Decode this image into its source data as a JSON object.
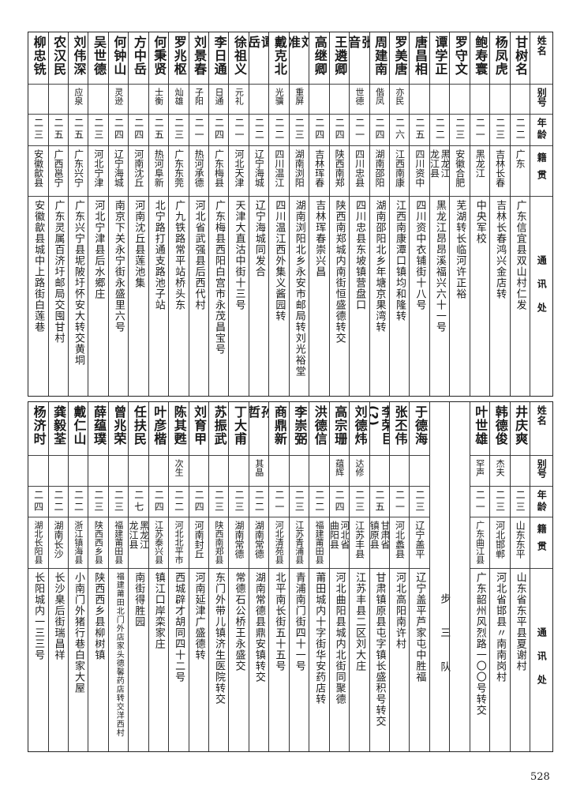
{
  "header": {
    "name": "姓名",
    "alias": "别号",
    "age": "年龄",
    "origin": "籍贯",
    "address": "通讯处"
  },
  "top": {
    "columns": [
      {
        "name": "甘树名",
        "alias": "",
        "age": "二二",
        "origin": [
          "广东"
        ],
        "address": "广东信宜县双山村仁发"
      },
      {
        "name": "杨凤虎",
        "alias": "",
        "age": "二三",
        "origin": [
          "吉林长春"
        ],
        "address": "吉林长春鸿兴金店转"
      },
      {
        "name": "鲍寿寰",
        "alias": "",
        "age": "二一",
        "origin": [
          "黑龙江"
        ],
        "address": "中央军校"
      },
      {
        "name": "罗守文",
        "alias": "",
        "age": "二三",
        "origin": [
          "安徽合肥"
        ],
        "address": "芜湖转长临河许正裕"
      },
      {
        "name": "谭学正",
        "alias": "",
        "age": "二二",
        "origin": [
          "黑龙江",
          "龙江县"
        ],
        "address": "黑龙江昂昂溪福兴六十一号"
      },
      {
        "name": "唐昌相",
        "alias": "",
        "age": "二五",
        "origin": [
          "四川资中"
        ],
        "address": "四川资中衣铺街十八号"
      },
      {
        "name": "罗美唐",
        "alias": "亦民",
        "age": "二六",
        "origin": [
          "江西南康"
        ],
        "address": "江西南康潭口镇均和隆转"
      },
      {
        "name": "周建南",
        "alias": "偕凤",
        "age": "二四",
        "origin": [
          "湖南邵阳"
        ],
        "address": "湖南邵阳北乡年塘京果湾转"
      },
      {
        "name": "张音",
        "alias": "世德",
        "age": "二一",
        "origin": [
          "四川忠县"
        ],
        "address": "四川忠县东坡镇营盘口"
      },
      {
        "name": "王遴卿",
        "alias": "",
        "age": "二四",
        "origin": [
          "陕西南郑"
        ],
        "address": "陕西南郑城内南街恒盛德转交"
      },
      {
        "name": "高继卿",
        "alias": "",
        "age": "二四",
        "origin": [
          "吉林珲春"
        ],
        "address": "吉林珲春崇兴昌"
      },
      {
        "name": "刘准",
        "alias": "重屏",
        "age": "二三",
        "origin": [
          "湖南浏阳"
        ],
        "address": "湖南浏阳北乡永安市邮局转刘光裕堂"
      },
      {
        "name": "戴克北",
        "alias": "光骥",
        "age": "二二",
        "origin": [
          "四川温江"
        ],
        "address": "四川温江西外集义酱园转"
      },
      {
        "name": "谭岳",
        "alias": "",
        "age": "二二",
        "origin": [
          "辽宁海城"
        ],
        "address": "辽宁海城同发合"
      },
      {
        "name": "徐祖义",
        "alias": "元礼",
        "age": "二一",
        "origin": [
          "河北天津"
        ],
        "address": "天津大直沽中街十三号"
      },
      {
        "name": "李日通",
        "alias": "日通",
        "age": "二四",
        "origin": [
          "广东梅县"
        ],
        "address": "广东梅县西阳白宫市永茂昌宝号"
      },
      {
        "name": "刘景春",
        "alias": "子阳",
        "age": "二一",
        "origin": [
          "热河承德"
        ],
        "address": "河北省武强县后西代村"
      },
      {
        "name": "罗兆枢",
        "alias": "灿雄",
        "age": "二三",
        "origin": [
          "广东东莞"
        ],
        "address": "广九铁路常平站桥头东"
      },
      {
        "name": "何秉贤",
        "alias": "士衡",
        "age": "二五",
        "origin": [
          "热河阜新"
        ],
        "address": "北宁路打通支路池子站"
      },
      {
        "name": "方中岳",
        "alias": "",
        "age": "二四",
        "origin": [
          "河南沈丘"
        ],
        "address": "河南沈丘县莲池集"
      },
      {
        "name": "何钟山",
        "alias": "灵逊",
        "age": "二四",
        "origin": [
          "辽宁海城"
        ],
        "address": "南京下关永宁街永盛里六号"
      },
      {
        "name": "吴世德",
        "alias": "",
        "age": "二三",
        "origin": [
          "河北宁津"
        ],
        "address": "河北宁津县后水郷庄"
      },
      {
        "name": "刘伟深",
        "alias": "应泉",
        "age": "二五",
        "origin": [
          "广东兴宁"
        ],
        "address": "广东兴宁县坭陂圩怀安大转交黄垌"
      },
      {
        "name": "农汉民",
        "alias": "",
        "age": "二五",
        "origin": [
          "广西邕宁"
        ],
        "address": "广东灵属百济圩邮局交囤甘村"
      },
      {
        "name": "柳忠铣",
        "alias": "",
        "age": "二三",
        "origin": [
          "安徽歙县"
        ],
        "address": "安徽歙县城中上路街白莲巷"
      }
    ]
  },
  "bottom": {
    "columns": [
      {
        "name": "井庆爽",
        "alias": "",
        "age": "二三",
        "origin": [
          "山东东平"
        ],
        "address": "山东省东平县夏谢村"
      },
      {
        "name": "韩德俊",
        "alias": "杰夫",
        "age": "二三",
        "origin": [
          "河北邯郸"
        ],
        "address": "河北省邯县〃南南岗村"
      },
      {
        "name": "叶世雄",
        "alias": "罕声",
        "age": "二一",
        "origin": [
          "广东曲江县"
        ],
        "address": "广东韶州风烈路一〇〇号转交"
      },
      {
        "blank": true
      },
      {
        "section": "步三队"
      },
      {
        "name": "于德海",
        "alias": "",
        "age": "二三",
        "origin": [
          "辽宁盖平"
        ],
        "address": "辽宁盖平芦家屯中胜福"
      },
      {
        "name": "张丕伟",
        "alias": "",
        "age": "二一",
        "origin": [
          "河北蠡县"
        ],
        "address": "河北高阳南许村"
      },
      {
        "name": "李荣巨",
        "note": "(?)",
        "alias": "",
        "age": "二五",
        "origin": [
          "甘肃省",
          "镇原县"
        ],
        "address": "甘肃镇原县屯字镇长盛积号转交"
      },
      {
        "name": "刘德炜",
        "alias": "达修",
        "age": "二三",
        "origin": [
          "江苏丰县"
        ],
        "address": "江苏丰县二区刘大庄"
      },
      {
        "name": "高宗珊",
        "alias": "蕴辉",
        "age": "二四",
        "origin": [
          "河北省",
          "曲阳县"
        ],
        "address": "河北曲阳县城内北街同聚德"
      },
      {
        "name": "洪德信",
        "alias": "",
        "age": "二二",
        "origin": [
          "福建莆田县"
        ],
        "address": "莆田城内十字街华安药店转"
      },
      {
        "name": "李崇弼",
        "alias": "",
        "age": "二三",
        "origin": [
          "江苏青浦县"
        ],
        "address": "青浦南门街四十一号"
      },
      {
        "name": "商鼎新",
        "alias": "",
        "age": "二一",
        "origin": [
          "河北清苑县"
        ],
        "address": "北平南长街五十五号"
      },
      {
        "name": "孙哲",
        "alias": "其晶",
        "age": "二二",
        "origin": [
          "湖南常德"
        ],
        "address": "湖南常德县鼎安镇转交"
      },
      {
        "name": "丁大甫",
        "alias": "",
        "age": "二三",
        "origin": [
          "湖南常德"
        ],
        "address": "常德石公桥王永盛交"
      },
      {
        "name": "苏振武",
        "alias": "",
        "age": "二三",
        "origin": [
          "陕西南郑县"
        ],
        "address": "东门外带儿镇济生医院转交"
      },
      {
        "name": "刘育甲",
        "alias": "",
        "age": "二四",
        "origin": [
          "河南封丘"
        ],
        "address": "河南延津广盛德转"
      },
      {
        "name": "陈其甦",
        "alias": "次生",
        "age": "二二",
        "origin": [
          "河北北平市"
        ],
        "address": "西城辟才胡同四十二号"
      },
      {
        "name": "叶彦楷",
        "alias": "",
        "age": "二四",
        "origin": [
          "江苏泰兴县"
        ],
        "address": "镇江口岸栾家庄"
      },
      {
        "name": "任扶民",
        "alias": "",
        "age": "二七",
        "origin": [
          "黑龙江",
          "龙江县"
        ],
        "address": "南街得胜园"
      },
      {
        "name": "曾兆荣",
        "alias": "",
        "age": "二三",
        "origin": [
          "福建莆田县"
        ],
        "address": "福建莆田北门外店家头德馨药店转交洋西村"
      },
      {
        "name": "薛蕴璞",
        "alias": "",
        "age": "二三",
        "origin": [
          "陕西西乡县"
        ],
        "address": "陕西西乡县柳树镇"
      },
      {
        "name": "戴仁山",
        "alias": "",
        "age": "二二",
        "origin": [
          "浙江镇海县"
        ],
        "address": "小南门外猪行巷白家大屋"
      },
      {
        "name": "龚毅荃",
        "alias": "",
        "age": "二二",
        "origin": [
          "湖南长沙"
        ],
        "address": "长沙臬后街瑞昌祥"
      },
      {
        "name": "杨济时",
        "alias": "",
        "age": "二四",
        "origin": [
          "湖北长阳县"
        ],
        "address": "长阳城内一三三号"
      }
    ]
  },
  "page_number": "528"
}
